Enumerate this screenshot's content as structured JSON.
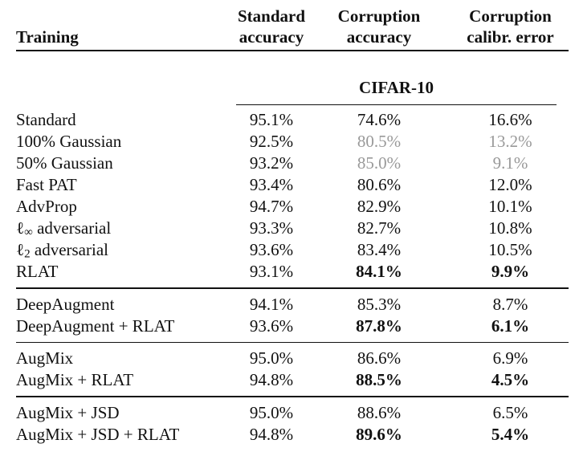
{
  "colors": {
    "text": "#111111",
    "muted_value": "#999999",
    "background": "#ffffff",
    "rule": "#111111"
  },
  "header": {
    "training": {
      "line1": "",
      "line2": "Training"
    },
    "columns": [
      {
        "line1": "Standard",
        "line2": "accuracy"
      },
      {
        "line1": "Corruption",
        "line2": "accuracy"
      },
      {
        "line1": "Corruption",
        "line2": "calibr. error"
      }
    ]
  },
  "dataset": {
    "label": "CIFAR-10"
  },
  "rows": [
    {
      "l0": "Standard",
      "sub": "",
      "l1": "",
      "std": "95.1%",
      "corr": "74.6%",
      "cce": "16.6%"
    },
    {
      "l0": "100% Gaussian",
      "sub": "",
      "l1": "",
      "std": "92.5%",
      "corr": "80.5%",
      "cce": "13.2%"
    },
    {
      "l0": "50% Gaussian",
      "sub": "",
      "l1": "",
      "std": "93.2%",
      "corr": "85.0%",
      "cce": "9.1%"
    },
    {
      "l0": "Fast PAT",
      "sub": "",
      "l1": "",
      "std": "93.4%",
      "corr": "80.6%",
      "cce": "12.0%"
    },
    {
      "l0": "AdvProp",
      "sub": "",
      "l1": "",
      "std": "94.7%",
      "corr": "82.9%",
      "cce": "10.1%"
    },
    {
      "l0": "ℓ",
      "sub": "∞",
      "l1": " adversarial",
      "std": "93.3%",
      "corr": "82.7%",
      "cce": "10.8%"
    },
    {
      "l0": "ℓ",
      "sub": "2",
      "l1": " adversarial",
      "std": "93.6%",
      "corr": "83.4%",
      "cce": "10.5%"
    },
    {
      "l0": "RLAT",
      "sub": "",
      "l1": "",
      "std": "93.1%",
      "corr": "84.1%",
      "cce": "9.9%"
    },
    {
      "l0": "DeepAugment",
      "sub": "",
      "l1": "",
      "std": "94.1%",
      "corr": "85.3%",
      "cce": "8.7%"
    },
    {
      "l0": "DeepAugment + RLAT",
      "sub": "",
      "l1": "",
      "std": "93.6%",
      "corr": "87.8%",
      "cce": "6.1%"
    },
    {
      "l0": "AugMix",
      "sub": "",
      "l1": "",
      "std": "95.0%",
      "corr": "86.6%",
      "cce": "6.9%"
    },
    {
      "l0": "AugMix + RLAT",
      "sub": "",
      "l1": "",
      "std": "94.8%",
      "corr": "88.5%",
      "cce": "4.5%"
    },
    {
      "l0": "AugMix + JSD",
      "sub": "",
      "l1": "",
      "std": "95.0%",
      "corr": "88.6%",
      "cce": "6.5%"
    },
    {
      "l0": "AugMix + JSD + RLAT",
      "sub": "",
      "l1": "",
      "std": "94.8%",
      "corr": "89.6%",
      "cce": "5.4%"
    }
  ]
}
